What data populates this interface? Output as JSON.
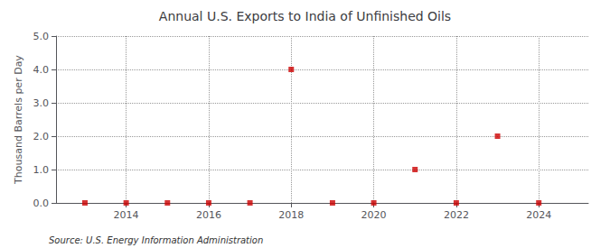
{
  "chart_data": {
    "type": "scatter",
    "title": "Annual U.S. Exports to India of Unfinished Oils",
    "ylabel": "Thousand Barrels per Day",
    "annotations": [
      "Source: U.S. Energy Information Administration"
    ],
    "x": [
      2013,
      2014,
      2015,
      2016,
      2017,
      2018,
      2019,
      2020,
      2021,
      2022,
      2023,
      2024
    ],
    "values": [
      0.0,
      0.0,
      0.0,
      0.0,
      0.0,
      4.0,
      0.0,
      0.0,
      1.0,
      0.0,
      2.0,
      0.0
    ],
    "color": "#cc0000",
    "marker": "square",
    "xlim": [
      2012.3,
      2025.2
    ],
    "xticks": [
      2014,
      2016,
      2018,
      2020,
      2022,
      2024
    ],
    "ylim": [
      0.0,
      5.0
    ],
    "yticks": [
      {
        "value": 0.0,
        "label": "0.0"
      },
      {
        "value": 1.0,
        "label": "1.0"
      },
      {
        "value": 2.0,
        "label": "2.0"
      },
      {
        "value": 3.0,
        "label": "3.0"
      },
      {
        "value": 4.0,
        "label": "4.0"
      },
      {
        "value": 5.0,
        "label": "5.0"
      }
    ],
    "grid": true
  }
}
